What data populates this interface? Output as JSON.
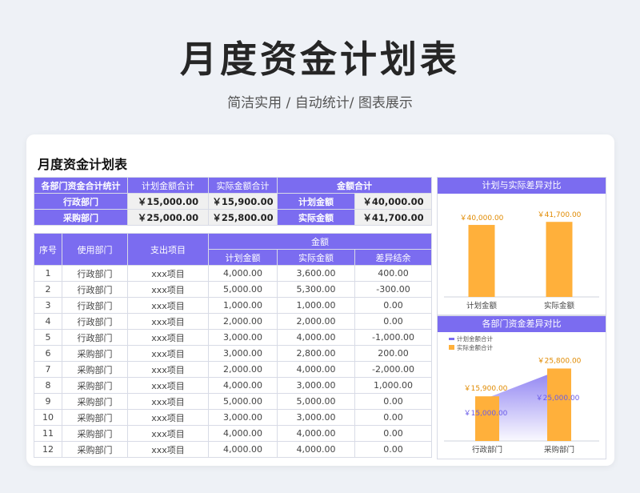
{
  "hero": {
    "title": "月度资金计划表",
    "subtitle": "简洁实用 / 自动统计/ 图表展示"
  },
  "sheet": {
    "title": "月度资金计划表"
  },
  "summary": {
    "headers": [
      "各部门资金合计统计",
      "计划金额合计",
      "实际金额合计",
      "金额合计"
    ],
    "rows": [
      {
        "dept": "行政部门",
        "plan": "￥15,000.00",
        "actual": "￥15,900.00",
        "label": "计划金额",
        "total": "￥40,000.00"
      },
      {
        "dept": "采购部门",
        "plan": "￥25,000.00",
        "actual": "￥25,800.00",
        "label": "实际金额",
        "total": "￥41,700.00"
      }
    ]
  },
  "detail": {
    "headers": {
      "no": "序号",
      "dept": "使用部门",
      "item": "支出项目",
      "amount": "金额",
      "plan": "计划金额",
      "actual": "实际金额",
      "diff": "差异结余"
    },
    "rows": [
      {
        "no": "1",
        "dept": "行政部门",
        "item": "xxx项目",
        "plan": "4,000.00",
        "actual": "3,600.00",
        "diff": "400.00"
      },
      {
        "no": "2",
        "dept": "行政部门",
        "item": "xxx项目",
        "plan": "5,000.00",
        "actual": "5,300.00",
        "diff": "-300.00"
      },
      {
        "no": "3",
        "dept": "行政部门",
        "item": "xxx项目",
        "plan": "1,000.00",
        "actual": "1,000.00",
        "diff": "0.00"
      },
      {
        "no": "4",
        "dept": "行政部门",
        "item": "xxx项目",
        "plan": "2,000.00",
        "actual": "2,000.00",
        "diff": "0.00"
      },
      {
        "no": "5",
        "dept": "行政部门",
        "item": "xxx项目",
        "plan": "3,000.00",
        "actual": "4,000.00",
        "diff": "-1,000.00"
      },
      {
        "no": "6",
        "dept": "采购部门",
        "item": "xxx项目",
        "plan": "3,000.00",
        "actual": "2,800.00",
        "diff": "200.00"
      },
      {
        "no": "7",
        "dept": "采购部门",
        "item": "xxx项目",
        "plan": "2,000.00",
        "actual": "4,000.00",
        "diff": "-2,000.00"
      },
      {
        "no": "8",
        "dept": "采购部门",
        "item": "xxx项目",
        "plan": "4,000.00",
        "actual": "3,000.00",
        "diff": "1,000.00"
      },
      {
        "no": "9",
        "dept": "采购部门",
        "item": "xxx项目",
        "plan": "5,000.00",
        "actual": "5,000.00",
        "diff": "0.00"
      },
      {
        "no": "10",
        "dept": "采购部门",
        "item": "xxx项目",
        "plan": "3,000.00",
        "actual": "3,000.00",
        "diff": "0.00"
      },
      {
        "no": "11",
        "dept": "采购部门",
        "item": "xxx项目",
        "plan": "4,000.00",
        "actual": "4,000.00",
        "diff": "0.00"
      },
      {
        "no": "12",
        "dept": "采购部门",
        "item": "xxx项目",
        "plan": "4,000.00",
        "actual": "4,000.00",
        "diff": "0.00"
      }
    ]
  },
  "chart_data": [
    {
      "type": "bar",
      "title": "计划与实际差异对比",
      "categories": [
        "计划金额",
        "实际金额"
      ],
      "values": [
        40000,
        41700
      ],
      "labels": [
        "￥40,000.00",
        "￥41,700.00"
      ],
      "colors": [
        "#ffb03b"
      ]
    },
    {
      "type": "bar",
      "title": "各部门资金差异对比",
      "categories": [
        "行政部门",
        "采购部门"
      ],
      "series": [
        {
          "name": "计划金额合计",
          "values": [
            15000,
            25000
          ],
          "labels": [
            "￥15,000.00",
            "￥25,000.00"
          ],
          "color": "#7b6cf0"
        },
        {
          "name": "实际金额合计",
          "values": [
            15900,
            25800
          ],
          "labels": [
            "￥15,900.00",
            "￥25,800.00"
          ],
          "color": "#ffb03b"
        }
      ],
      "legend": "top-left"
    }
  ]
}
